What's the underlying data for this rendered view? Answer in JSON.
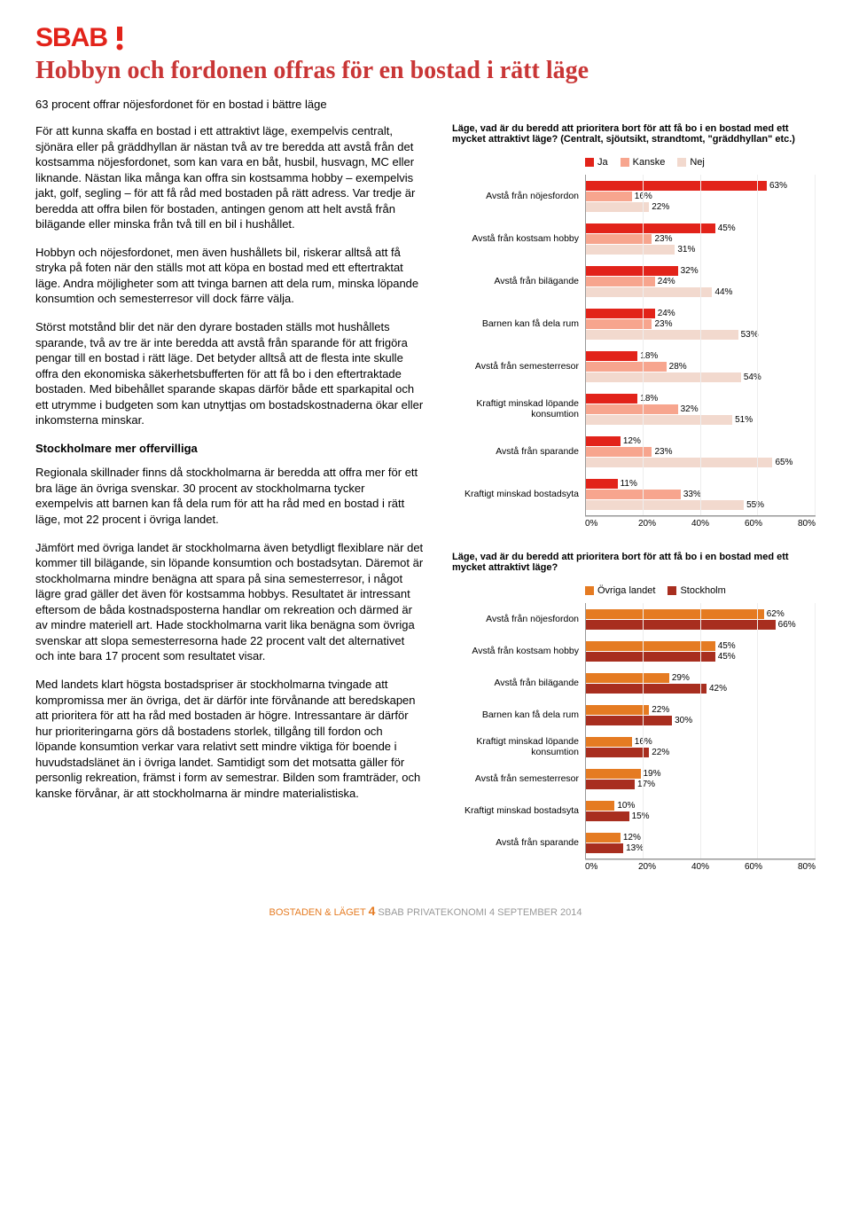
{
  "logo": {
    "text": "SBAB!",
    "color": "#e2231a"
  },
  "title": "Hobbyn och fordonen offras för en bostad i rätt läge",
  "intro": "63 procent offrar nöjesfordonet för en bostad i bättre läge",
  "paragraphs": [
    "För att kunna skaffa en bostad i ett attraktivt läge, exempelvis centralt, sjönära eller på gräddhyllan är nästan två av tre beredda att avstå från det kostsamma nöjesfordonet, som kan vara en båt, husbil, husvagn, MC eller liknande. Nästan lika många kan offra sin kostsamma hobby – exempelvis jakt, golf, segling – för att få råd med bostaden på rätt adress. Var tredje är beredda att offra bilen för bostaden, antingen genom att helt avstå från bilägande eller minska från två till en bil i hushållet.",
    "Hobbyn och nöjesfordonet, men även hushållets bil, riskerar alltså att få stryka på foten när den ställs mot att köpa en bostad med ett eftertraktat läge. Andra möjligheter som att tvinga barnen att dela rum, minska löpande konsumtion och semesterresor vill dock färre välja.",
    "Störst motstånd blir det när den dyrare bostaden ställs mot hushållets sparande, två av tre är inte beredda att avstå från sparande för att frigöra pengar till en bostad i rätt läge. Det betyder alltså att de flesta inte skulle offra den ekonomiska säkerhetsbufferten för att få bo i den eftertraktade bostaden. Med bibehållet sparande skapas därför både ett sparkapital och ett utrymme i budgeten som kan utnyttjas om bostadskostnaderna ökar eller inkomsterna minskar."
  ],
  "subhead": "Stockholmare mer offervilliga",
  "paragraphs2": [
    "Regionala skillnader finns då stockholmarna är beredda att offra mer för ett bra läge än övriga svenskar. 30 procent av stockholmarna tycker exempelvis att barnen kan få dela rum för att ha råd med en bostad i rätt läge, mot 22 procent i övriga landet.",
    "Jämfört med övriga landet är stockholmarna även betydligt flexiblare när det kommer till bilägande, sin löpande konsumtion och bostadsytan. Däremot är stockholmarna mindre benägna att spara på sina semesterresor, i något lägre grad gäller det även för kostsamma hobbys. Resultatet är intressant eftersom de båda kostnadsposterna handlar om rekreation och därmed är av mindre materiell art. Hade stockholmarna varit lika benägna som övriga svenskar att slopa semesterresorna hade 22 procent valt det alternativet och inte bara 17 procent som resultatet visar.",
    "Med landets klart högsta bostadspriser är stockholmarna tvingade att kompromissa mer än övriga, det är därför inte förvånande att beredskapen att prioritera för att ha råd med bostaden är högre. Intressantare är därför hur prioriteringarna görs då bostadens storlek, tillgång till fordon och löpande konsumtion verkar vara relativt sett mindre viktiga för boende i huvudstadslänet än i övriga landet. Samtidigt som det motsatta gäller för personlig rekreation, främst i form av semestrar. Bilden som framträder, och kanske förvånar, är att stockholmarna är mindre materialistiska."
  ],
  "chart1": {
    "title": "Läge, vad är du beredd att prioritera bort för att få bo i en bostad med ett mycket attraktivt läge? (Centralt, sjöutsikt, strandtomt, \"gräddhyllan\" etc.)",
    "legend": [
      {
        "label": "Ja",
        "color": "#e2231a"
      },
      {
        "label": "Kanske",
        "color": "#f7a58e"
      },
      {
        "label": "Nej",
        "color": "#f2d9ce"
      }
    ],
    "xmax": 80,
    "xticks": [
      "0%",
      "20%",
      "40%",
      "60%",
      "80%"
    ],
    "categories": [
      {
        "label": "Avstå från nöjesfordon",
        "values": [
          63,
          16,
          22
        ]
      },
      {
        "label": "Avstå från kostsam hobby",
        "values": [
          45,
          23,
          31
        ]
      },
      {
        "label": "Avstå från bilägande",
        "values": [
          32,
          24,
          44
        ]
      },
      {
        "label": "Barnen kan få dela rum",
        "values": [
          24,
          23,
          53
        ]
      },
      {
        "label": "Avstå från semesterresor",
        "values": [
          18,
          28,
          54
        ]
      },
      {
        "label": "Kraftigt minskad löpande konsumtion",
        "values": [
          18,
          32,
          51
        ]
      },
      {
        "label": "Avstå från sparande",
        "values": [
          12,
          23,
          65
        ]
      },
      {
        "label": "Kraftigt minskad bostadsyta",
        "values": [
          11,
          33,
          55
        ]
      }
    ]
  },
  "chart2": {
    "title": "Läge, vad är du beredd att prioritera bort för att få bo i en bostad med ett mycket attraktivt läge?",
    "legend": [
      {
        "label": "Övriga landet",
        "color": "#e57b22"
      },
      {
        "label": "Stockholm",
        "color": "#a82e1f"
      }
    ],
    "xmax": 80,
    "xticks": [
      "0%",
      "20%",
      "40%",
      "60%",
      "80%"
    ],
    "categories": [
      {
        "label": "Avstå från nöjesfordon",
        "values": [
          62,
          66
        ]
      },
      {
        "label": "Avstå från kostsam hobby",
        "values": [
          45,
          45
        ]
      },
      {
        "label": "Avstå från bilägande",
        "values": [
          29,
          42
        ]
      },
      {
        "label": "Barnen kan få dela rum",
        "values": [
          22,
          30
        ]
      },
      {
        "label": "Kraftigt minskad löpande konsumtion",
        "values": [
          16,
          22
        ]
      },
      {
        "label": "Avstå från semesterresor",
        "values": [
          19,
          17
        ]
      },
      {
        "label": "Kraftigt minskad bostadsyta",
        "values": [
          10,
          15
        ]
      },
      {
        "label": "Avstå från sparande",
        "values": [
          12,
          13
        ]
      }
    ]
  },
  "footer": {
    "a": "BOSTADEN & LÄGET",
    "page": "4",
    "b": "SBAB PRIVATEKONOMI",
    "c": "4 SEPTEMBER 2014"
  }
}
